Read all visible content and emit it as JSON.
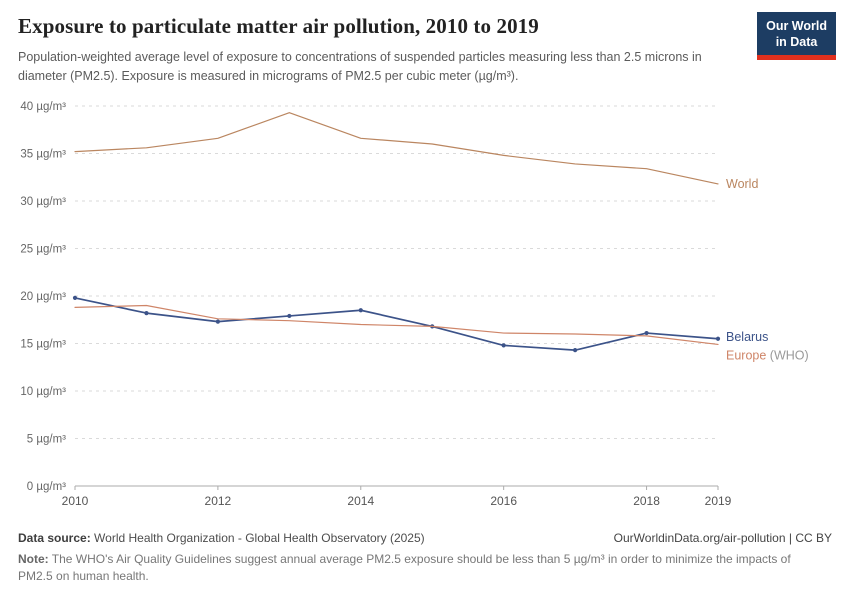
{
  "logo": {
    "line1": "Our World",
    "line2": "in Data"
  },
  "header": {
    "title": "Exposure to particulate matter air pollution, 2010 to 2019",
    "subtitle": "Population-weighted average level of exposure to concentrations of suspended particles measuring less than 2.5 microns in diameter (PM2.5). Exposure is measured in micrograms of PM2.5 per cubic meter (µg/m³)."
  },
  "chart_data": {
    "type": "line",
    "title": "Exposure to particulate matter air pollution, 2010 to 2019",
    "xlabel": "",
    "ylabel": "µg/m³",
    "x": [
      2010,
      2011,
      2012,
      2013,
      2014,
      2015,
      2016,
      2017,
      2018,
      2019
    ],
    "series": [
      {
        "name": "World",
        "label": "World",
        "color": "#BA8660",
        "markers": false,
        "label_dy": 4,
        "values": [
          35.2,
          35.6,
          36.6,
          39.3,
          36.6,
          36.0,
          34.8,
          33.9,
          33.4,
          31.8
        ]
      },
      {
        "name": "Belarus",
        "label": "Belarus",
        "color": "#3C5389",
        "markers": true,
        "label_dy": 2,
        "values": [
          19.8,
          18.2,
          17.3,
          17.9,
          18.5,
          16.8,
          14.8,
          14.3,
          16.1,
          15.5
        ]
      },
      {
        "name": "Europe (WHO)",
        "label": "Europe",
        "label_note": "(WHO)",
        "color": "#CF8568",
        "markers": false,
        "label_dy": 15,
        "values": [
          18.8,
          19.0,
          17.6,
          17.4,
          17.0,
          16.8,
          16.1,
          16.0,
          15.8,
          14.9
        ]
      }
    ],
    "ylim": [
      0,
      40
    ],
    "yticks": [
      0,
      5,
      10,
      15,
      20,
      25,
      30,
      35,
      40
    ],
    "ytick_suffix": " µg/m³",
    "xticks": [
      2010,
      2012,
      2014,
      2016,
      2018,
      2019
    ],
    "grid": true,
    "legend_position": "right-end-labels"
  },
  "footer": {
    "datasource_label": "Data source:",
    "datasource_text": " World Health Organization - Global Health Observatory (2025)",
    "credit": "OurWorldinData.org/air-pollution | CC BY",
    "note_label": "Note:",
    "note_text": " The WHO's Air Quality Guidelines suggest annual average PM2.5 exposure should be less than 5 µg/m³ in order to minimize the impacts of PM2.5 on human health."
  }
}
